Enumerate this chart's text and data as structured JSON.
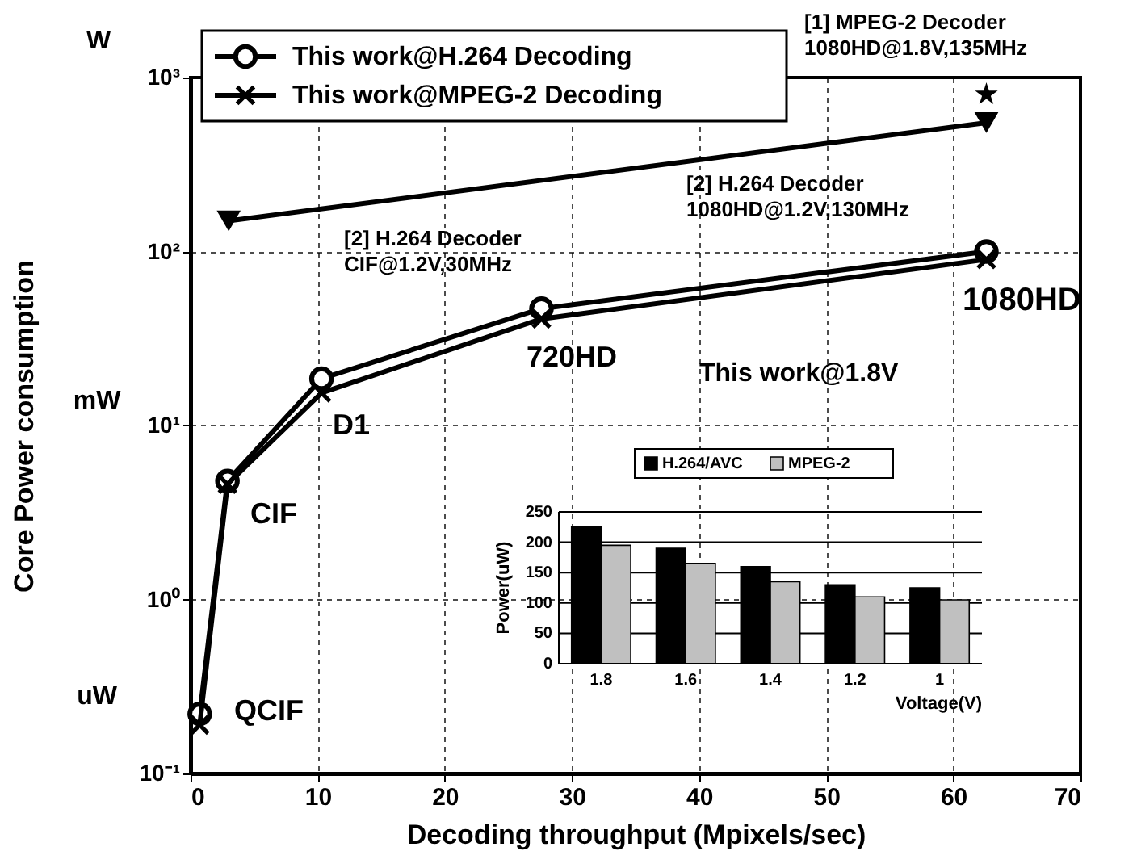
{
  "chart_data": [
    {
      "type": "line",
      "xlabel": "Decoding throughput (Mpixels/sec)",
      "ylabel": "Core Power consumption",
      "log": "y",
      "xlim": [
        0,
        70
      ],
      "xticks": [
        0,
        10,
        20,
        30,
        40,
        50,
        60,
        70
      ],
      "ylim": [
        0.1,
        1000
      ],
      "yticks": [
        {
          "value": 0.1,
          "label": "10⁻¹"
        },
        {
          "value": 1,
          "label": "10⁰"
        },
        {
          "value": 10,
          "label": "10¹"
        },
        {
          "value": 100,
          "label": "10²"
        },
        {
          "value": 1000,
          "label": "10³"
        }
      ],
      "grid": true,
      "legend": "top left",
      "line_style": "solid",
      "series": [
        {
          "name": "This work@H.264 Decoding",
          "color": "#000000",
          "marker": "circle",
          "x": [
            0.72,
            2.9,
            10.3,
            27.6,
            62.6
          ],
          "values": [
            0.22,
            4.8,
            18.6,
            47,
            100
          ]
        },
        {
          "name": "This work@MPEG-2 Decoding",
          "color": "#000000",
          "marker": "cross",
          "x": [
            0.72,
            2.9,
            10.3,
            27.6,
            62.6
          ],
          "values": [
            0.19,
            4.6,
            15.4,
            41,
            90
          ]
        },
        {
          "type": "line",
          "color": "#000000",
          "marker": "triangle",
          "x": [
            3.0,
            62.6
          ],
          "values": [
            150,
            550
          ]
        },
        {
          "type": "scatter",
          "color": "#000000",
          "marker": "star",
          "x": [
            62.6
          ],
          "values": [
            800
          ]
        }
      ],
      "annotations": [
        "QCIF",
        "CIF",
        "D1",
        "720HD",
        "1080HD",
        "This work@1.8V",
        "[2] H.264 Decoder\nCIF@1.2V,30MHz",
        "[2] H.264 Decoder\n1080HD@1.2V,130MHz",
        "[1] MPEG-2 Decoder\n1080HD@1.8V,135MHz",
        "W",
        "mW",
        "uW"
      ]
    },
    {
      "type": "bar",
      "categories": [
        "1.8",
        "1.6",
        "1.4",
        "1.2",
        "1"
      ],
      "xlabel": "Voltage(V)",
      "ylabel": "Power(uW)",
      "ylim": [
        0,
        250
      ],
      "yticks": [
        0,
        50,
        100,
        150,
        200,
        250
      ],
      "grid": "y",
      "legend": "top",
      "series": [
        {
          "name": "H.264/AVC",
          "color": "#000000",
          "values": [
            225,
            190,
            160,
            130,
            125
          ]
        },
        {
          "name": "MPEG-2",
          "color": "#c0c0c0",
          "values": [
            195,
            165,
            135,
            110,
            105
          ]
        }
      ]
    }
  ]
}
